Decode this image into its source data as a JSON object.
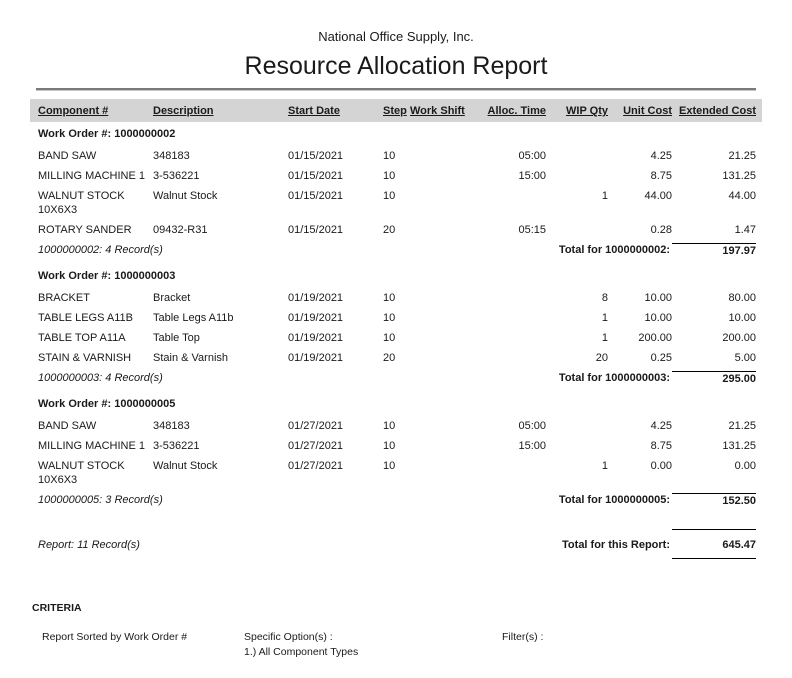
{
  "header": {
    "company": "National Office Supply, Inc.",
    "title": "Resource Allocation Report"
  },
  "table": {
    "columns": [
      "Component #",
      "Description",
      "Start Date",
      "Step",
      "Work Shift",
      "Alloc. Time",
      "WIP Qty",
      "Unit Cost",
      "Extended Cost"
    ],
    "groups": [
      {
        "header": "Work Order #: 1000000002",
        "rows": [
          {
            "component": "BAND SAW",
            "description": "348183",
            "start_date": "01/15/2021",
            "step": "10",
            "work_shift": "",
            "alloc_time": "05:00",
            "wip_qty": "",
            "unit_cost": "4.25",
            "extended_cost": "21.25"
          },
          {
            "component": "MILLING MACHINE 1",
            "description": "3-536221",
            "start_date": "01/15/2021",
            "step": "10",
            "work_shift": "",
            "alloc_time": "15:00",
            "wip_qty": "",
            "unit_cost": "8.75",
            "extended_cost": "131.25"
          },
          {
            "component": "WALNUT STOCK 10X6X3",
            "description": "Walnut Stock",
            "start_date": "01/15/2021",
            "step": "10",
            "work_shift": "",
            "alloc_time": "",
            "wip_qty": "1",
            "unit_cost": "44.00",
            "extended_cost": "44.00"
          },
          {
            "component": "ROTARY SANDER",
            "description": "09432-R31",
            "start_date": "01/15/2021",
            "step": "20",
            "work_shift": "",
            "alloc_time": "05:15",
            "wip_qty": "",
            "unit_cost": "0.28",
            "extended_cost": "1.47"
          }
        ],
        "records_label": "1000000002: 4 Record(s)",
        "total_label": "Total for 1000000002:",
        "total_value": "197.97"
      },
      {
        "header": "Work Order #: 1000000003",
        "rows": [
          {
            "component": "BRACKET",
            "description": "Bracket",
            "start_date": "01/19/2021",
            "step": "10",
            "work_shift": "",
            "alloc_time": "",
            "wip_qty": "8",
            "unit_cost": "10.00",
            "extended_cost": "80.00"
          },
          {
            "component": "TABLE LEGS A11B",
            "description": "Table Legs A11b",
            "start_date": "01/19/2021",
            "step": "10",
            "work_shift": "",
            "alloc_time": "",
            "wip_qty": "1",
            "unit_cost": "10.00",
            "extended_cost": "10.00"
          },
          {
            "component": "TABLE TOP A11A",
            "description": "Table Top",
            "start_date": "01/19/2021",
            "step": "10",
            "work_shift": "",
            "alloc_time": "",
            "wip_qty": "1",
            "unit_cost": "200.00",
            "extended_cost": "200.00"
          },
          {
            "component": "STAIN & VARNISH",
            "description": "Stain & Varnish",
            "start_date": "01/19/2021",
            "step": "20",
            "work_shift": "",
            "alloc_time": "",
            "wip_qty": "20",
            "unit_cost": "0.25",
            "extended_cost": "5.00"
          }
        ],
        "records_label": "1000000003: 4 Record(s)",
        "total_label": "Total for 1000000003:",
        "total_value": "295.00"
      },
      {
        "header": "Work Order #: 1000000005",
        "rows": [
          {
            "component": "BAND SAW",
            "description": "348183",
            "start_date": "01/27/2021",
            "step": "10",
            "work_shift": "",
            "alloc_time": "05:00",
            "wip_qty": "",
            "unit_cost": "4.25",
            "extended_cost": "21.25"
          },
          {
            "component": "MILLING MACHINE 1",
            "description": "3-536221",
            "start_date": "01/27/2021",
            "step": "10",
            "work_shift": "",
            "alloc_time": "15:00",
            "wip_qty": "",
            "unit_cost": "8.75",
            "extended_cost": "131.25"
          },
          {
            "component": "WALNUT STOCK 10X6X3",
            "description": "Walnut Stock",
            "start_date": "01/27/2021",
            "step": "10",
            "work_shift": "",
            "alloc_time": "",
            "wip_qty": "1",
            "unit_cost": "0.00",
            "extended_cost": "0.00"
          }
        ],
        "records_label": "1000000005: 3 Record(s)",
        "total_label": "Total for 1000000005:",
        "total_value": "152.50"
      }
    ],
    "report_records_label": "Report: 11 Record(s)",
    "report_total_label": "Total for this Report:",
    "report_total_value": "645.47"
  },
  "criteria": {
    "heading": "CRITERIA",
    "sorted_by": "Report Sorted by Work Order #",
    "specific_options_label": "Specific Option(s) :",
    "specific_options": [
      "1.) All Component Types"
    ],
    "filters_label": "Filter(s) :"
  },
  "colors": {
    "header_band": "#d4d4d4",
    "rule_dark": "#7b7b7b",
    "rule_light": "#c6c6c6",
    "text": "#1a1a1a"
  }
}
